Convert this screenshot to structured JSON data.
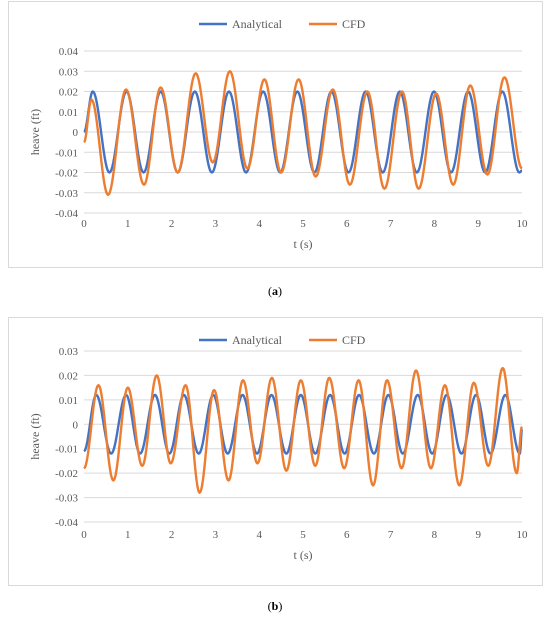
{
  "chart_data": [
    {
      "id": "a",
      "type": "line",
      "caption_letter": "a",
      "xlabel": "t (s)",
      "ylabel": "heave (ft)",
      "xlim": [
        0,
        10
      ],
      "ylim": [
        -0.04,
        0.04
      ],
      "x_ticks": [
        "0",
        "1",
        "2",
        "3",
        "4",
        "5",
        "6",
        "7",
        "8",
        "9",
        "10"
      ],
      "y_ticks": [
        "0.04",
        "0.03",
        "0.02",
        "0.01",
        "0",
        "-0.01",
        "-0.02",
        "-0.03",
        "-0.04"
      ],
      "y_tick_values": [
        0.04,
        0.03,
        0.02,
        0.01,
        0,
        -0.01,
        -0.02,
        -0.03,
        -0.04
      ],
      "grid": "horizontal",
      "legend_position": "top",
      "series": [
        {
          "name": "Analytical",
          "color": "#4472C4",
          "x": [
            0,
            0.2,
            0.58,
            0.97,
            1.36,
            1.75,
            2.14,
            2.53,
            2.92,
            3.31,
            3.7,
            4.09,
            4.48,
            4.87,
            5.26,
            5.65,
            6.04,
            6.43,
            6.82,
            7.21,
            7.6,
            7.99,
            8.38,
            8.77,
            9.16,
            9.55,
            9.94,
            10
          ],
          "y": [
            0,
            0.02,
            -0.02,
            0.02,
            -0.02,
            0.02,
            -0.02,
            0.02,
            -0.02,
            0.02,
            -0.02,
            0.02,
            -0.02,
            0.02,
            -0.02,
            0.02,
            -0.02,
            0.02,
            -0.02,
            0.02,
            -0.02,
            0.02,
            -0.02,
            0.02,
            -0.02,
            0.02,
            -0.02,
            -0.019
          ]
        },
        {
          "name": "CFD",
          "color": "#ED7D31",
          "x": [
            0,
            0.17,
            0.55,
            0.96,
            1.37,
            1.75,
            2.14,
            2.55,
            2.94,
            3.33,
            3.73,
            4.12,
            4.5,
            4.9,
            5.29,
            5.68,
            6.07,
            6.47,
            6.86,
            7.26,
            7.64,
            8.04,
            8.43,
            8.82,
            9.21,
            9.6,
            10
          ],
          "y": [
            -0.005,
            0.016,
            -0.031,
            0.021,
            -0.026,
            0.022,
            -0.02,
            0.029,
            -0.015,
            0.03,
            -0.018,
            0.026,
            -0.02,
            0.026,
            -0.022,
            0.021,
            -0.026,
            0.02,
            -0.028,
            0.02,
            -0.028,
            0.019,
            -0.026,
            0.023,
            -0.021,
            0.027,
            -0.018
          ]
        }
      ]
    },
    {
      "id": "b",
      "type": "line",
      "caption_letter": "b",
      "xlabel": "t (s)",
      "ylabel": "heave (ft)",
      "xlim": [
        0,
        10
      ],
      "ylim": [
        -0.04,
        0.03
      ],
      "x_ticks": [
        "0",
        "1",
        "2",
        "3",
        "4",
        "5",
        "6",
        "7",
        "8",
        "9",
        "10"
      ],
      "y_ticks": [
        "0.03",
        "0.02",
        "0.01",
        "0",
        "-0.01",
        "-0.02",
        "-0.03",
        "-0.04"
      ],
      "y_tick_values": [
        0.03,
        0.02,
        0.01,
        0,
        -0.01,
        -0.02,
        -0.03,
        -0.04
      ],
      "grid": "horizontal",
      "legend_position": "top",
      "series": [
        {
          "name": "Analytical",
          "color": "#4472C4",
          "x": [
            0,
            0.28,
            0.62,
            0.96,
            1.28,
            1.62,
            1.95,
            2.28,
            2.62,
            2.95,
            3.28,
            3.62,
            3.95,
            4.28,
            4.62,
            4.95,
            5.28,
            5.62,
            5.95,
            6.28,
            6.62,
            6.95,
            7.28,
            7.62,
            7.95,
            8.28,
            8.62,
            8.95,
            9.28,
            9.62,
            9.95,
            10
          ],
          "y": [
            -0.011,
            0.012,
            -0.012,
            0.012,
            -0.012,
            0.012,
            -0.012,
            0.012,
            -0.012,
            0.012,
            -0.012,
            0.012,
            -0.012,
            0.012,
            -0.012,
            0.012,
            -0.012,
            0.012,
            -0.012,
            0.012,
            -0.012,
            0.012,
            -0.012,
            0.012,
            -0.012,
            0.012,
            -0.012,
            0.012,
            -0.012,
            0.012,
            -0.012,
            -0.002
          ]
        },
        {
          "name": "CFD",
          "color": "#ED7D31",
          "x": [
            0,
            0.33,
            0.67,
            1.0,
            1.33,
            1.66,
            1.98,
            2.32,
            2.64,
            2.97,
            3.3,
            3.63,
            3.96,
            4.29,
            4.62,
            4.95,
            5.28,
            5.6,
            5.94,
            6.27,
            6.6,
            6.92,
            7.25,
            7.58,
            7.92,
            8.24,
            8.57,
            8.9,
            9.23,
            9.56,
            9.88,
            10
          ],
          "y": [
            -0.018,
            0.016,
            -0.023,
            0.015,
            -0.017,
            0.02,
            -0.016,
            0.016,
            -0.028,
            0.014,
            -0.023,
            0.018,
            -0.016,
            0.019,
            -0.019,
            0.018,
            -0.017,
            0.019,
            -0.018,
            0.018,
            -0.025,
            0.018,
            -0.018,
            0.022,
            -0.018,
            0.016,
            -0.025,
            0.017,
            -0.017,
            0.023,
            -0.02,
            -0.001
          ]
        }
      ]
    }
  ]
}
